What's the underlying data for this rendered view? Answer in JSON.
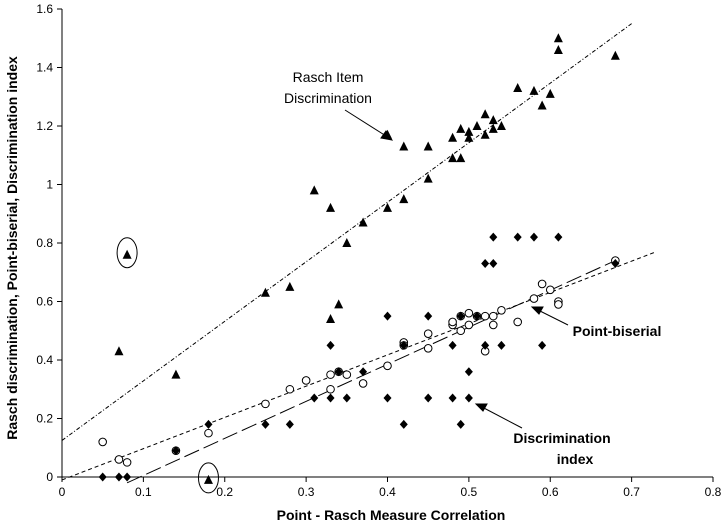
{
  "chart_data": {
    "type": "scatter",
    "title": "",
    "xlabel": "Point - Rasch Measure Correlation",
    "ylabel": "Rasch discrimination, Point-biserial, Discrimination index",
    "xlim": [
      0,
      0.8
    ],
    "ylim": [
      0,
      1.6
    ],
    "xticks": [
      "0",
      "0.1",
      "0.2",
      "0.3",
      "0.4",
      "0.5",
      "0.6",
      "0.7",
      "0.8"
    ],
    "yticks": [
      "0",
      "0.2",
      "0.4",
      "0.6",
      "0.8",
      "1",
      "1.2",
      "1.4",
      "1.6"
    ],
    "grid": false,
    "legend": "none",
    "annotations": [
      "Rasch Item",
      "Discrimination",
      "Point-biserial",
      "Discrimination",
      "index"
    ],
    "series": [
      {
        "marker": "filled-triangle",
        "color": "#000000",
        "x": [
          0.07,
          0.08,
          0.14,
          0.18,
          0.25,
          0.28,
          0.31,
          0.33,
          0.33,
          0.34,
          0.35,
          0.37,
          0.4,
          0.4,
          0.42,
          0.42,
          0.45,
          0.45,
          0.48,
          0.48,
          0.49,
          0.49,
          0.5,
          0.5,
          0.51,
          0.52,
          0.52,
          0.53,
          0.53,
          0.54,
          0.56,
          0.58,
          0.59,
          0.6,
          0.61,
          0.61,
          0.68
        ],
        "y": [
          0.43,
          0.76,
          0.35,
          -0.01,
          0.63,
          0.65,
          0.98,
          0.92,
          0.54,
          0.59,
          0.8,
          0.87,
          1.17,
          0.92,
          1.13,
          0.95,
          1.13,
          1.02,
          1.16,
          1.09,
          1.19,
          1.09,
          1.18,
          1.16,
          1.2,
          1.24,
          1.17,
          1.22,
          1.19,
          1.2,
          1.33,
          1.32,
          1.27,
          1.31,
          1.5,
          1.46,
          1.44
        ]
      },
      {
        "marker": "open-circle",
        "color": "#000000",
        "x": [
          0.05,
          0.07,
          0.08,
          0.14,
          0.18,
          0.25,
          0.28,
          0.3,
          0.33,
          0.33,
          0.34,
          0.35,
          0.37,
          0.4,
          0.42,
          0.42,
          0.45,
          0.45,
          0.48,
          0.48,
          0.49,
          0.49,
          0.5,
          0.5,
          0.51,
          0.52,
          0.52,
          0.53,
          0.53,
          0.54,
          0.56,
          0.58,
          0.59,
          0.6,
          0.61,
          0.61,
          0.68
        ],
        "y": [
          0.12,
          0.06,
          0.05,
          0.09,
          0.15,
          0.25,
          0.3,
          0.33,
          0.35,
          0.3,
          0.36,
          0.35,
          0.32,
          0.38,
          0.46,
          0.45,
          0.49,
          0.44,
          0.52,
          0.53,
          0.55,
          0.5,
          0.56,
          0.52,
          0.55,
          0.55,
          0.43,
          0.55,
          0.52,
          0.57,
          0.53,
          0.61,
          0.66,
          0.64,
          0.6,
          0.59,
          0.74
        ]
      },
      {
        "marker": "filled-diamond",
        "color": "#000000",
        "x": [
          0.05,
          0.07,
          0.08,
          0.14,
          0.18,
          0.25,
          0.28,
          0.31,
          0.33,
          0.33,
          0.34,
          0.35,
          0.37,
          0.4,
          0.4,
          0.42,
          0.42,
          0.45,
          0.45,
          0.48,
          0.48,
          0.49,
          0.49,
          0.5,
          0.5,
          0.51,
          0.52,
          0.52,
          0.53,
          0.53,
          0.54,
          0.56,
          0.58,
          0.59,
          0.61,
          0.68
        ],
        "y": [
          0.0,
          0.0,
          0.0,
          0.09,
          0.18,
          0.18,
          0.18,
          0.27,
          0.27,
          0.45,
          0.36,
          0.27,
          0.36,
          0.55,
          0.27,
          0.18,
          0.45,
          0.55,
          0.27,
          0.45,
          0.27,
          0.18,
          0.55,
          0.36,
          0.27,
          0.55,
          0.73,
          0.45,
          0.73,
          0.82,
          0.45,
          0.82,
          0.82,
          0.45,
          0.82,
          0.73
        ]
      }
    ],
    "trendlines": [
      {
        "name": "Rasch Item Discrimination",
        "style": "dash-dot",
        "x": [
          0.0,
          0.7
        ],
        "y": [
          0.125,
          1.55
        ]
      },
      {
        "name": "Point-biserial",
        "style": "short-dash",
        "x": [
          0.0,
          0.73
        ],
        "y": [
          -0.01,
          0.77
        ]
      },
      {
        "name": "Discrimination index",
        "style": "long-dash",
        "x": [
          0.08,
          0.68
        ],
        "y": [
          -0.02,
          0.74
        ]
      }
    ],
    "highlighted": [
      {
        "x": 0.08,
        "y": 0.76
      },
      {
        "x": 0.18,
        "y": -0.01
      }
    ]
  }
}
